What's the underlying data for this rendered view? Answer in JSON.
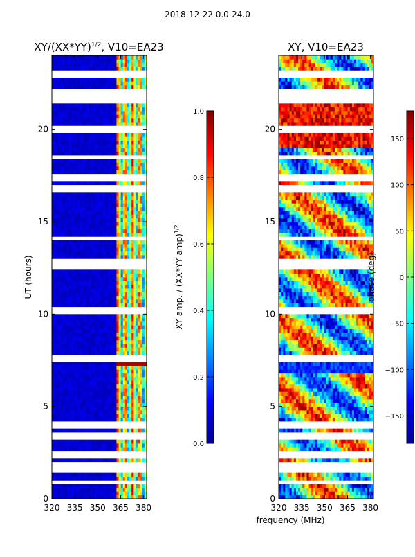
{
  "figure": {
    "suptitle": "2018-12-22 0.0-24.0",
    "xlabel": "frequency (MHz)"
  },
  "chart_data": [
    {
      "type": "heatmap",
      "title_main": "XY/(XX*YY)",
      "title_sup": "1/2",
      "title_tail": ", V10=EA23",
      "ylabel": "UT (hours)",
      "xlim": [
        320,
        382
      ],
      "ylim": [
        0,
        24
      ],
      "xticks": [
        320,
        335,
        350,
        365,
        380
      ],
      "yticks": [
        0,
        5,
        10,
        15,
        20
      ],
      "colormap": "jet",
      "colorbar": {
        "label_main": "XY amp. / (XX*YY amp)",
        "label_sup": "1/2",
        "range": [
          0.0,
          1.0
        ],
        "ticks": [
          "0.0",
          "0.2",
          "0.4",
          "0.6",
          "0.8",
          "1.0"
        ]
      },
      "description_values": {
        "low_frequency_band_mhz": [
          320,
          362
        ],
        "low_frequency_level": 0.08,
        "high_frequency_band_mhz": [
          362,
          382
        ],
        "high_frequency_level": 0.55
      }
    },
    {
      "type": "heatmap",
      "title": "XY, V10=EA23",
      "xlim": [
        320,
        382
      ],
      "ylim": [
        0,
        24
      ],
      "xticks": [
        320,
        335,
        350,
        365,
        380
      ],
      "yticks": [
        0,
        5,
        10,
        15,
        20
      ],
      "colormap": "jet",
      "colorbar": {
        "label": "phase (deg)",
        "range": [
          -180,
          180
        ],
        "ticks": [
          "150",
          "100",
          "50",
          "0",
          "−50",
          "−100",
          "−150"
        ]
      }
    }
  ],
  "colors": {
    "jet_dark_blue": "#00008f",
    "jet_blue": "#0000ff",
    "jet_cyan": "#00ffff",
    "jet_yellow": "#ffff00",
    "jet_red": "#ff0000",
    "jet_dark_red": "#800000"
  }
}
